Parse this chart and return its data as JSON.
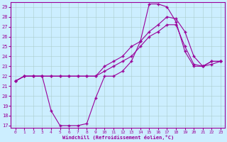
{
  "xlabel": "Windchill (Refroidissement éolien,°C)",
  "bg_color": "#cceeff",
  "grid_color": "#aacccc",
  "line_color": "#990099",
  "xlim": [
    -0.5,
    23.5
  ],
  "ylim": [
    16.8,
    29.5
  ],
  "yticks": [
    17,
    18,
    19,
    20,
    21,
    22,
    23,
    24,
    25,
    26,
    27,
    28,
    29
  ],
  "xticks": [
    0,
    1,
    2,
    3,
    4,
    5,
    6,
    7,
    8,
    9,
    10,
    11,
    12,
    13,
    14,
    15,
    16,
    17,
    18,
    19,
    20,
    21,
    22,
    23
  ],
  "line1_x": [
    0,
    1,
    2,
    3,
    4,
    5,
    6,
    7,
    8,
    9,
    10,
    11,
    12,
    13,
    14,
    15,
    16,
    17,
    18,
    19,
    20,
    21,
    22,
    23
  ],
  "line1_y": [
    21.5,
    22,
    22,
    22,
    18.5,
    17,
    17,
    17,
    17.2,
    19.8,
    22,
    22,
    22.5,
    23.5,
    25.5,
    29.3,
    29.3,
    29,
    27.5,
    24.5,
    23,
    23,
    23.5,
    23.5
  ],
  "line2_x": [
    0,
    1,
    2,
    3,
    4,
    5,
    6,
    7,
    8,
    9,
    10,
    11,
    12,
    13,
    14,
    15,
    16,
    17,
    18,
    19,
    20,
    21,
    22,
    23
  ],
  "line2_y": [
    21.5,
    22,
    22,
    22,
    22,
    22,
    22,
    22,
    22,
    22,
    22.5,
    23,
    23.5,
    24,
    25,
    26,
    26.5,
    27.2,
    27.2,
    25,
    23.2,
    23,
    23.2,
    23.5
  ],
  "line3_x": [
    0,
    1,
    2,
    3,
    4,
    5,
    6,
    7,
    8,
    9,
    10,
    11,
    12,
    13,
    14,
    15,
    16,
    17,
    18,
    19,
    20,
    21,
    22,
    23
  ],
  "line3_y": [
    21.5,
    22,
    22,
    22,
    22,
    22,
    22,
    22,
    22,
    22,
    23,
    23.5,
    24,
    25,
    25.5,
    26.5,
    27.2,
    28,
    27.8,
    26.5,
    24,
    23,
    23.5,
    23.5
  ]
}
